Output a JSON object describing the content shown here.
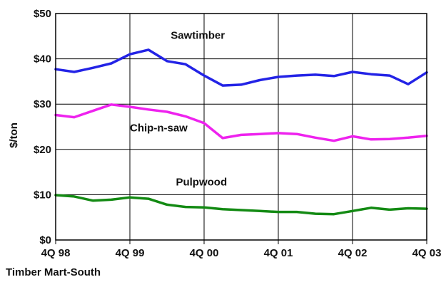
{
  "chart_data": {
    "type": "line",
    "ylabel": "$/ton",
    "xlabel": "",
    "ylim": [
      0,
      50
    ],
    "yticks": [
      0,
      10,
      20,
      30,
      40,
      50
    ],
    "ytick_labels": [
      "$0",
      "$10",
      "$20",
      "$30",
      "$40",
      "$50"
    ],
    "xlim": [
      0,
      5
    ],
    "xticks": [
      0,
      1,
      2,
      3,
      4,
      5
    ],
    "xtick_labels": [
      "4Q 98",
      "4Q 99",
      "4Q 00",
      "4Q 01",
      "4Q 02",
      "4Q 03"
    ],
    "grid": true,
    "series": [
      {
        "name": "Sawtimber",
        "color": "#2323e6",
        "x": [
          0,
          0.25,
          0.5,
          0.75,
          1.0,
          1.25,
          1.5,
          1.75,
          2.0,
          2.25,
          2.5,
          2.75,
          3.0,
          3.25,
          3.5,
          3.75,
          4.0,
          4.25,
          4.5,
          4.75,
          5.0
        ],
        "y": [
          37.7,
          37.1,
          38.0,
          39.0,
          41.0,
          42.0,
          39.5,
          38.8,
          36.3,
          34.1,
          34.3,
          35.3,
          36.0,
          36.3,
          36.5,
          36.2,
          37.1,
          36.6,
          36.3,
          34.4,
          37.0
        ]
      },
      {
        "name": "Chip-n-saw",
        "color": "#ee22ee",
        "x": [
          0,
          0.25,
          0.5,
          0.75,
          1.0,
          1.25,
          1.5,
          1.75,
          2.0,
          2.25,
          2.5,
          2.75,
          3.0,
          3.25,
          3.5,
          3.75,
          4.0,
          4.25,
          4.5,
          4.75,
          5.0
        ],
        "y": [
          27.6,
          27.1,
          28.5,
          29.9,
          29.4,
          28.8,
          28.3,
          27.3,
          25.8,
          22.5,
          23.2,
          23.4,
          23.6,
          23.4,
          22.6,
          21.9,
          22.9,
          22.2,
          22.3,
          22.6,
          23.0
        ]
      },
      {
        "name": "Pulpwood",
        "color": "#138a13",
        "x": [
          0,
          0.25,
          0.5,
          0.75,
          1.0,
          1.25,
          1.5,
          1.75,
          2.0,
          2.25,
          2.5,
          2.75,
          3.0,
          3.25,
          3.5,
          3.75,
          4.0,
          4.25,
          4.5,
          4.75,
          5.0
        ],
        "y": [
          9.9,
          9.6,
          8.7,
          8.9,
          9.4,
          9.1,
          7.8,
          7.3,
          7.2,
          6.8,
          6.6,
          6.4,
          6.2,
          6.2,
          5.8,
          5.7,
          6.4,
          7.1,
          6.7,
          7.0,
          6.9
        ]
      }
    ],
    "annotations": [
      {
        "text": "Sawtimber",
        "x": 1.55,
        "y": 45.2
      },
      {
        "text": "Chip-n-saw",
        "x": 1.0,
        "y": 24.8
      },
      {
        "text": "Pulpwood",
        "x": 1.62,
        "y": 12.8
      }
    ],
    "source": "Timber Mart-South"
  }
}
